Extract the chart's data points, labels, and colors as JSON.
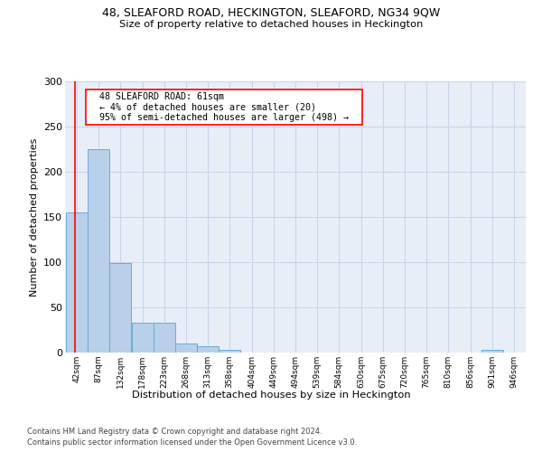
{
  "title1": "48, SLEAFORD ROAD, HECKINGTON, SLEAFORD, NG34 9QW",
  "title2": "Size of property relative to detached houses in Heckington",
  "xlabel": "Distribution of detached houses by size in Heckington",
  "ylabel": "Number of detached properties",
  "footer1": "Contains HM Land Registry data © Crown copyright and database right 2024.",
  "footer2": "Contains public sector information licensed under the Open Government Licence v3.0.",
  "annotation_line1": "  48 SLEAFORD ROAD: 61sqm  ",
  "annotation_line2": "  ← 4% of detached houses are smaller (20)  ",
  "annotation_line3": "  95% of semi-detached houses are larger (498) →  ",
  "bin_edges": [
    42,
    87,
    132,
    178,
    223,
    268,
    313,
    358,
    404,
    449,
    494,
    539,
    584,
    630,
    675,
    720,
    765,
    810,
    856,
    901,
    946
  ],
  "bar_heights": [
    155,
    225,
    99,
    33,
    33,
    10,
    7,
    3,
    0,
    0,
    0,
    0,
    0,
    0,
    0,
    0,
    0,
    0,
    0,
    3
  ],
  "bar_color": "#b8d0ea",
  "bar_edge_color": "#6aaad4",
  "grid_color": "#c8d4e8",
  "bg_color": "#e8eef8",
  "red_line_x": 61,
  "ylim": [
    0,
    300
  ],
  "yticks": [
    0,
    50,
    100,
    150,
    200,
    250,
    300
  ],
  "figsize": [
    6.0,
    5.0
  ],
  "dpi": 100
}
